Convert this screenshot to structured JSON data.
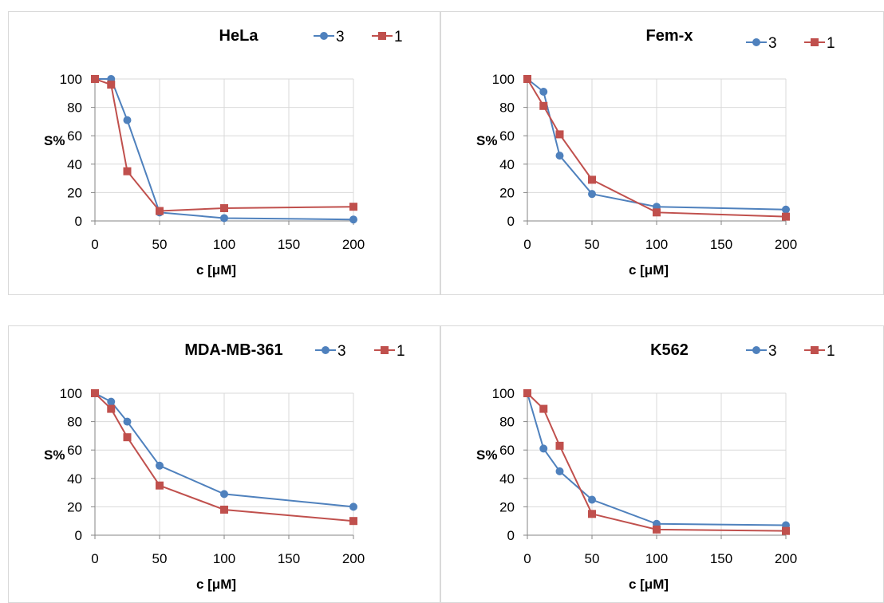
{
  "chart_data": [
    {
      "type": "line",
      "title": "HeLa",
      "xlabel": "c [μM]",
      "ylabel": "S%",
      "xlim": [
        0,
        200
      ],
      "ylim": [
        0,
        100
      ],
      "xticks": [
        0,
        50,
        100,
        150,
        200
      ],
      "yticks": [
        0,
        20,
        40,
        60,
        80,
        100
      ],
      "grid": true,
      "legend": "top-right",
      "series": [
        {
          "name": "3",
          "color": "#4f81bd",
          "marker": "circle",
          "x": [
            0,
            12.5,
            25,
            50,
            100,
            200
          ],
          "y": [
            100,
            100,
            71,
            6,
            2,
            1
          ]
        },
        {
          "name": "1",
          "color": "#c0504d",
          "marker": "square",
          "x": [
            0,
            12.5,
            25,
            50,
            100,
            200
          ],
          "y": [
            100,
            96,
            35,
            7,
            9,
            10
          ]
        }
      ]
    },
    {
      "type": "line",
      "title": "Fem-x",
      "xlabel": "c [μM]",
      "ylabel": "S%",
      "xlim": [
        0,
        200
      ],
      "ylim": [
        0,
        100
      ],
      "xticks": [
        0,
        50,
        100,
        150,
        200
      ],
      "yticks": [
        0,
        20,
        40,
        60,
        80,
        100
      ],
      "grid": true,
      "legend": "top-right",
      "series": [
        {
          "name": "3",
          "color": "#4f81bd",
          "marker": "circle",
          "x": [
            0,
            12.5,
            25,
            50,
            100,
            200
          ],
          "y": [
            100,
            91,
            46,
            19,
            10,
            8
          ]
        },
        {
          "name": "1",
          "color": "#c0504d",
          "marker": "square",
          "x": [
            0,
            12.5,
            25,
            50,
            100,
            200
          ],
          "y": [
            100,
            81,
            61,
            29,
            6,
            3
          ]
        }
      ]
    },
    {
      "type": "line",
      "title": "MDA-MB-361",
      "xlabel": "c [μM]",
      "ylabel": "S%",
      "xlim": [
        0,
        200
      ],
      "ylim": [
        0,
        100
      ],
      "xticks": [
        0,
        50,
        100,
        150,
        200
      ],
      "yticks": [
        0,
        20,
        40,
        60,
        80,
        100
      ],
      "grid": true,
      "legend": "top-right",
      "series": [
        {
          "name": "3",
          "color": "#4f81bd",
          "marker": "circle",
          "x": [
            0,
            12.5,
            25,
            50,
            100,
            200
          ],
          "y": [
            100,
            94,
            80,
            49,
            29,
            20
          ]
        },
        {
          "name": "1",
          "color": "#c0504d",
          "marker": "square",
          "x": [
            0,
            12.5,
            25,
            50,
            100,
            200
          ],
          "y": [
            100,
            89,
            69,
            35,
            18,
            10
          ]
        }
      ]
    },
    {
      "type": "line",
      "title": "K562",
      "xlabel": "c [μM]",
      "ylabel": "S%",
      "xlim": [
        0,
        200
      ],
      "ylim": [
        0,
        100
      ],
      "xticks": [
        0,
        50,
        100,
        150,
        200
      ],
      "yticks": [
        0,
        20,
        40,
        60,
        80,
        100
      ],
      "grid": true,
      "legend": "top-right",
      "series": [
        {
          "name": "3",
          "color": "#4f81bd",
          "marker": "circle",
          "x": [
            0,
            12.5,
            25,
            50,
            100,
            200
          ],
          "y": [
            100,
            61,
            45,
            25,
            8,
            7
          ]
        },
        {
          "name": "1",
          "color": "#c0504d",
          "marker": "square",
          "x": [
            0,
            12.5,
            25,
            50,
            100,
            200
          ],
          "y": [
            100,
            89,
            63,
            15,
            4,
            3
          ]
        }
      ]
    }
  ]
}
